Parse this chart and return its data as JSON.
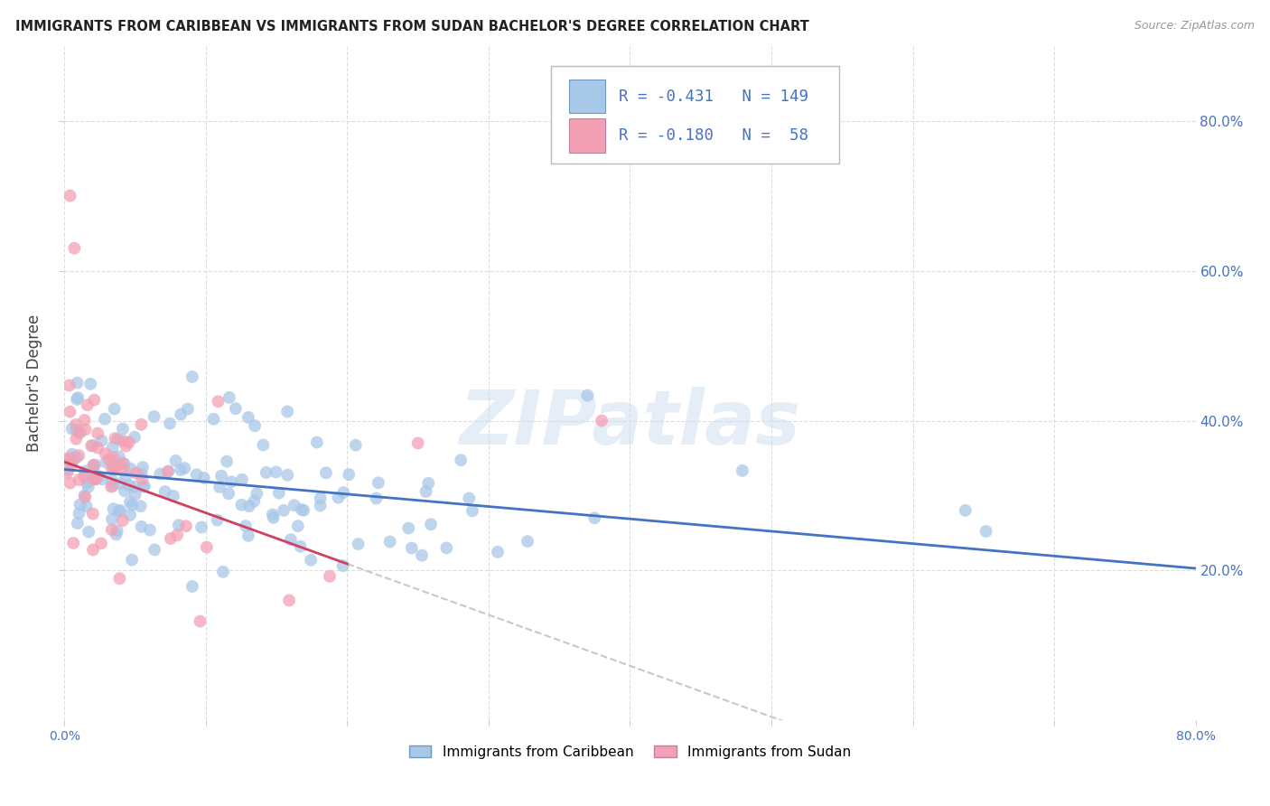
{
  "title": "IMMIGRANTS FROM CARIBBEAN VS IMMIGRANTS FROM SUDAN BACHELOR'S DEGREE CORRELATION CHART",
  "source": "Source: ZipAtlas.com",
  "ylabel": "Bachelor's Degree",
  "right_yticklabels": [
    "20.0%",
    "40.0%",
    "60.0%",
    "80.0%"
  ],
  "right_yticks": [
    0.2,
    0.4,
    0.6,
    0.8
  ],
  "xlim": [
    0.0,
    0.8
  ],
  "ylim": [
    0.0,
    0.9
  ],
  "legend1_label": "Immigrants from Caribbean",
  "legend2_label": "Immigrants from Sudan",
  "R1": -0.431,
  "N1": 149,
  "R2": -0.18,
  "N2": 58,
  "color_caribbean": "#a8c8e8",
  "color_sudan": "#f4a0b4",
  "color_line1": "#4472c4",
  "color_line2": "#d04060",
  "color_dashed": "#c8c8c8",
  "background_color": "#ffffff",
  "watermark": "ZIPatlas",
  "grid_color": "#dddddd",
  "title_color": "#222222",
  "source_color": "#999999",
  "axis_label_color": "#4472c4",
  "legend_text_color": "#4472c4",
  "legend_box_color": "#dddddd"
}
